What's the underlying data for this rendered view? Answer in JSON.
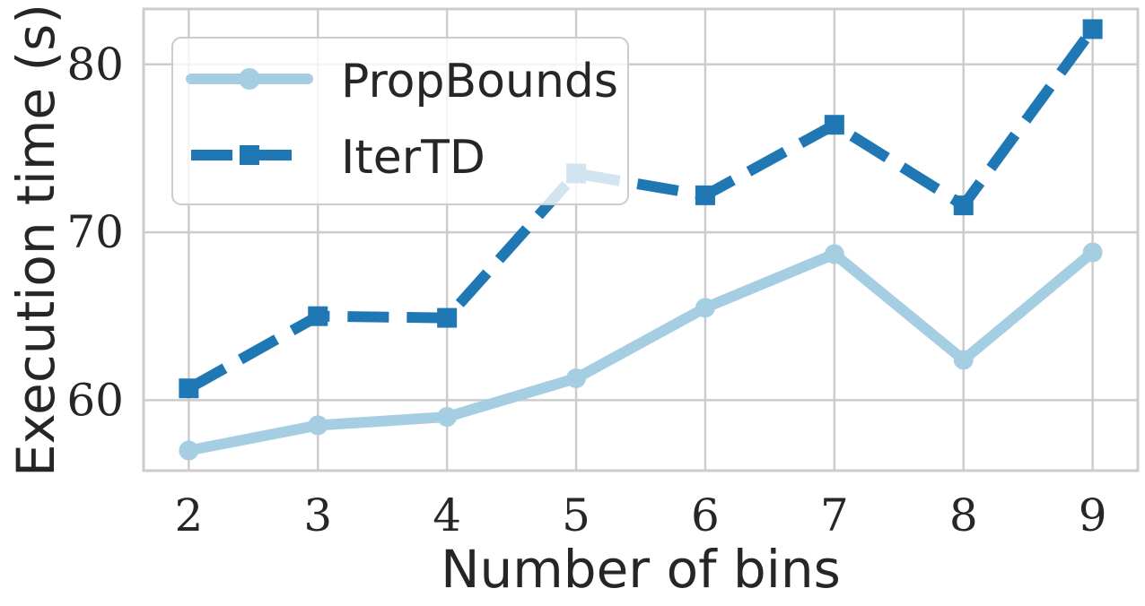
{
  "chart_data": {
    "type": "line",
    "xlabel": "Number of bins",
    "ylabel": "Execution time (s)",
    "x": [
      2,
      3,
      4,
      5,
      6,
      7,
      8,
      9
    ],
    "x_tick_labels": [
      "2",
      "3",
      "4",
      "5",
      "6",
      "7",
      "8",
      "9"
    ],
    "y_ticks": [
      60,
      70,
      80
    ],
    "y_tick_labels": [
      "60",
      "70",
      "80"
    ],
    "xlim": [
      1.65,
      9.35
    ],
    "ylim": [
      55.8,
      83.3
    ],
    "grid": true,
    "legend_position": "top-left",
    "series": [
      {
        "name": "PropBounds",
        "values": [
          57.0,
          58.5,
          59.0,
          61.3,
          65.5,
          68.7,
          62.4,
          68.8
        ],
        "color": "#a6cee3",
        "marker": "circle",
        "linestyle": "solid"
      },
      {
        "name": "IterTD",
        "values": [
          60.7,
          65.0,
          64.9,
          73.5,
          72.2,
          76.4,
          71.6,
          82.1
        ],
        "color": "#1f78b4",
        "marker": "square",
        "linestyle": "dashed"
      }
    ]
  }
}
